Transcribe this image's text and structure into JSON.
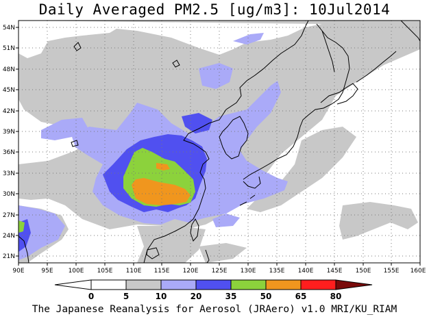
{
  "title": "Daily Averaged PM2.5 [ug/m3]: 10Jul2014",
  "footer": "The Japanese Reanalysis for Aerosol (JRAero) v1.0 MRI/KU_RIAM",
  "map": {
    "lon_range": [
      90,
      160
    ],
    "lat_range": [
      20,
      55
    ],
    "lon_ticks": [
      "90E",
      "95E",
      "100E",
      "105E",
      "110E",
      "115E",
      "120E",
      "125E",
      "130E",
      "135E",
      "140E",
      "145E",
      "150E",
      "155E",
      "160E"
    ],
    "lat_ticks": [
      "21N",
      "24N",
      "27N",
      "30N",
      "33N",
      "36N",
      "39N",
      "42N",
      "45N",
      "48N",
      "51N",
      "54N"
    ],
    "gridlines": "dotted",
    "colors": {
      "lvl_0_5": "#ffffff",
      "lvl_5_10": "#c8c8c8",
      "lvl_10_20": "#aaaaf8",
      "lvl_20_35": "#5050f0",
      "lvl_35_50": "#8cd23c",
      "lvl_50_65": "#f0961e",
      "lvl_65_80": "#ff1e1e",
      "lvl_80_plus": "#7a0a0a",
      "coastline": "#000000"
    }
  },
  "colorbar": {
    "labels": [
      "0",
      "5",
      "10",
      "20",
      "35",
      "50",
      "65",
      "80"
    ],
    "colors": [
      "#ffffff",
      "#c8c8c8",
      "#aaaaf8",
      "#5050f0",
      "#8cd23c",
      "#f0961e",
      "#ff1e1e"
    ],
    "under_color": "#ffffff",
    "over_color": "#7a0a0a"
  }
}
